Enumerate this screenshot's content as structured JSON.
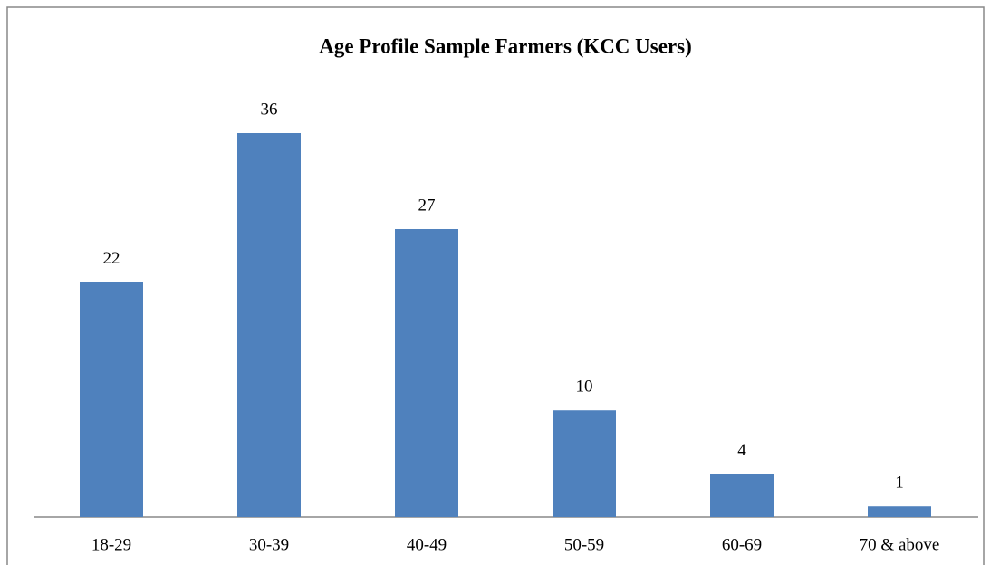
{
  "chart_data": {
    "type": "bar",
    "title": "Age Profile Sample Farmers (KCC Users)",
    "categories": [
      "18-29",
      "30-39",
      "40-49",
      "50-59",
      "60-69",
      "70 & above"
    ],
    "values": [
      22,
      36,
      27,
      10,
      4,
      1
    ],
    "color": "#4f81bd"
  }
}
